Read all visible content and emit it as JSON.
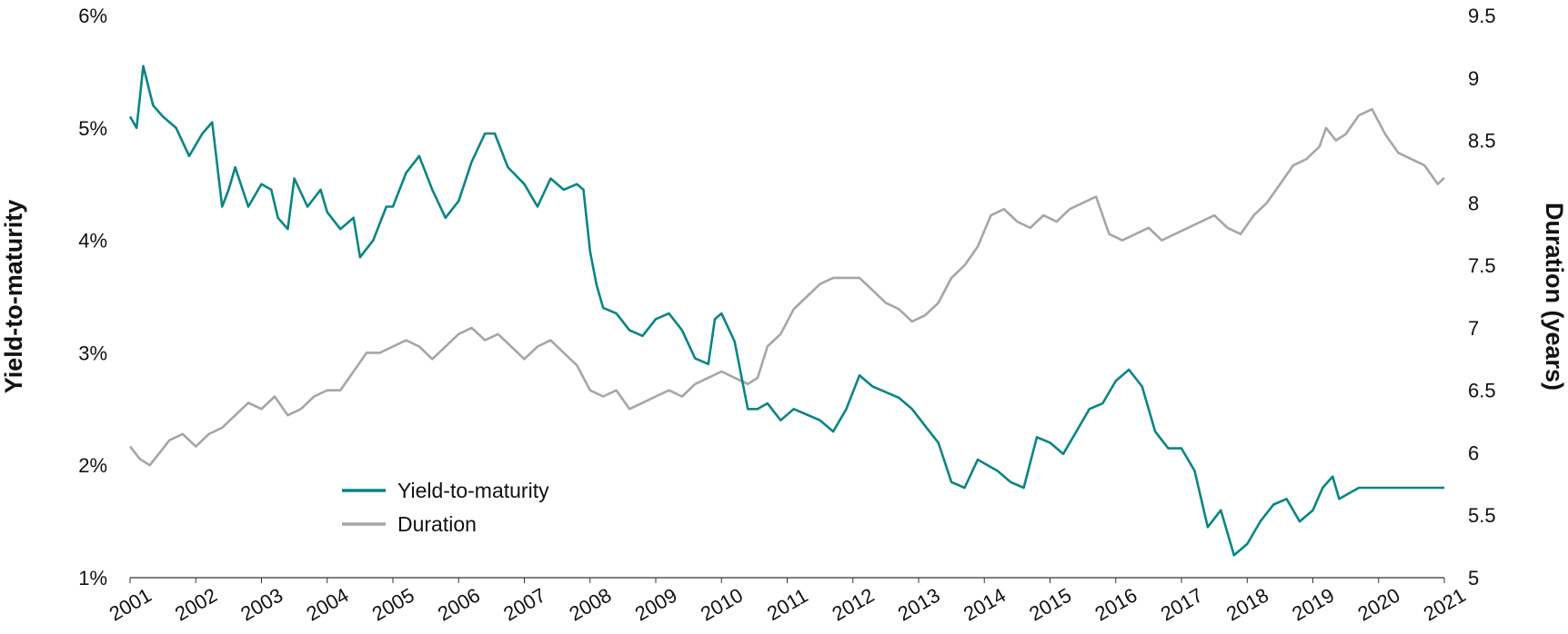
{
  "chart_data": {
    "type": "line",
    "xlabel": "",
    "ylabel_left": "Yield-to-maturity",
    "ylabel_right": "Duration (years)",
    "x_ticks": [
      "2001",
      "2002",
      "2003",
      "2004",
      "2005",
      "2006",
      "2007",
      "2008",
      "2009",
      "2010",
      "2011",
      "2012",
      "2013",
      "2014",
      "2015",
      "2016",
      "2017",
      "2018",
      "2019",
      "2020",
      "2021"
    ],
    "y_left_ticks": [
      "1%",
      "2%",
      "3%",
      "4%",
      "5%",
      "6%"
    ],
    "y_left_values": [
      1,
      2,
      3,
      4,
      5,
      6
    ],
    "y_right_ticks": [
      "5",
      "5.5",
      "6",
      "6.5",
      "7",
      "7.5",
      "8",
      "8.5",
      "9",
      "9.5"
    ],
    "y_right_values": [
      5,
      5.5,
      6,
      6.5,
      7,
      7.5,
      8,
      8.5,
      9,
      9.5
    ],
    "x_range": [
      2001.0,
      2021.0
    ],
    "y_left_range": [
      1,
      6
    ],
    "y_right_range": [
      5,
      9.5
    ],
    "legend_position": "lower-left",
    "grid": false,
    "series": [
      {
        "name": "Yield-to-maturity",
        "axis": "left",
        "color": "#0a8585",
        "x": [
          2001.0,
          2001.1,
          2001.2,
          2001.35,
          2001.5,
          2001.7,
          2001.9,
          2002.1,
          2002.25,
          2002.4,
          2002.5,
          2002.6,
          2002.8,
          2003.0,
          2003.15,
          2003.25,
          2003.4,
          2003.5,
          2003.7,
          2003.9,
          2004.0,
          2004.2,
          2004.4,
          2004.5,
          2004.7,
          2004.9,
          2005.0,
          2005.2,
          2005.4,
          2005.6,
          2005.8,
          2006.0,
          2006.2,
          2006.4,
          2006.55,
          2006.75,
          2007.0,
          2007.2,
          2007.4,
          2007.6,
          2007.8,
          2007.9,
          2008.0,
          2008.1,
          2008.2,
          2008.4,
          2008.6,
          2008.8,
          2009.0,
          2009.2,
          2009.4,
          2009.6,
          2009.8,
          2009.9,
          2010.0,
          2010.2,
          2010.4,
          2010.55,
          2010.7,
          2010.9,
          2011.1,
          2011.3,
          2011.5,
          2011.7,
          2011.9,
          2012.1,
          2012.3,
          2012.5,
          2012.7,
          2012.9,
          2013.1,
          2013.3,
          2013.5,
          2013.7,
          2013.9,
          2014.05,
          2014.2,
          2014.4,
          2014.6,
          2014.8,
          2015.0,
          2015.2,
          2015.4,
          2015.6,
          2015.8,
          2016.0,
          2016.2,
          2016.4,
          2016.6,
          2016.8,
          2017.0,
          2017.2,
          2017.4,
          2017.6,
          2017.8,
          2018.0,
          2018.2,
          2018.4,
          2018.6,
          2018.8,
          2019.0,
          2019.15,
          2019.3,
          2019.4,
          2019.55,
          2019.7,
          2019.9,
          2020.1,
          2020.3,
          2020.5,
          2020.7,
          2020.9,
          2021.0
        ],
        "values": [
          5.1,
          5.0,
          5.55,
          5.2,
          5.1,
          5.0,
          4.75,
          4.95,
          5.05,
          4.3,
          4.45,
          4.65,
          4.3,
          4.5,
          4.45,
          4.2,
          4.1,
          4.55,
          4.3,
          4.45,
          4.25,
          4.1,
          4.2,
          3.85,
          4.0,
          4.3,
          4.3,
          4.6,
          4.75,
          4.45,
          4.2,
          4.35,
          4.7,
          4.95,
          4.95,
          4.65,
          4.5,
          4.3,
          4.55,
          4.45,
          4.5,
          4.45,
          3.9,
          3.6,
          3.4,
          3.35,
          3.2,
          3.15,
          3.3,
          3.35,
          3.2,
          2.95,
          2.9,
          3.3,
          3.35,
          3.1,
          2.5,
          2.5,
          2.55,
          2.4,
          2.5,
          2.45,
          2.4,
          2.3,
          2.5,
          2.8,
          2.7,
          2.65,
          2.6,
          2.5,
          2.35,
          2.2,
          1.85,
          1.8,
          2.05,
          2.0,
          1.95,
          1.85,
          1.8,
          2.25,
          2.2,
          2.1,
          2.3,
          2.5,
          2.55,
          2.75,
          2.85,
          2.7,
          2.3,
          2.15,
          2.15,
          1.95,
          1.45,
          1.6,
          1.2,
          1.3,
          1.5,
          1.65,
          1.7,
          1.5,
          1.6,
          1.8,
          1.9,
          1.7,
          1.75,
          1.8,
          1.8,
          1.8,
          1.8,
          1.8,
          1.8,
          1.8,
          1.8
        ],
        "values_note": ""
      },
      {
        "name": "Duration",
        "axis": "right",
        "color": "#a6a6a6",
        "x": [
          2001.0,
          2001.15,
          2001.3,
          2001.45,
          2001.6,
          2001.8,
          2002.0,
          2002.2,
          2002.4,
          2002.6,
          2002.8,
          2003.0,
          2003.2,
          2003.4,
          2003.6,
          2003.8,
          2004.0,
          2004.2,
          2004.4,
          2004.6,
          2004.8,
          2005.0,
          2005.2,
          2005.4,
          2005.6,
          2005.8,
          2006.0,
          2006.2,
          2006.4,
          2006.6,
          2006.8,
          2007.0,
          2007.2,
          2007.4,
          2007.6,
          2007.8,
          2008.0,
          2008.2,
          2008.4,
          2008.6,
          2008.8,
          2009.0,
          2009.2,
          2009.4,
          2009.6,
          2009.8,
          2010.0,
          2010.2,
          2010.4,
          2010.55,
          2010.7,
          2010.9,
          2011.1,
          2011.3,
          2011.5,
          2011.7,
          2011.9,
          2012.1,
          2012.3,
          2012.5,
          2012.7,
          2012.9,
          2013.1,
          2013.3,
          2013.5,
          2013.7,
          2013.9,
          2014.1,
          2014.3,
          2014.5,
          2014.7,
          2014.9,
          2015.1,
          2015.3,
          2015.5,
          2015.7,
          2015.9,
          2016.1,
          2016.3,
          2016.5,
          2016.7,
          2016.9,
          2017.1,
          2017.3,
          2017.5,
          2017.7,
          2017.9,
          2018.1,
          2018.3,
          2018.5,
          2018.7,
          2018.9,
          2019.1,
          2019.2,
          2019.35,
          2019.5,
          2019.7,
          2019.9,
          2020.1,
          2020.3,
          2020.5,
          2020.7,
          2020.9,
          2021.0
        ],
        "values": [
          6.05,
          5.95,
          5.9,
          6.0,
          6.1,
          6.15,
          6.05,
          6.15,
          6.2,
          6.3,
          6.4,
          6.35,
          6.45,
          6.3,
          6.35,
          6.45,
          6.5,
          6.5,
          6.65,
          6.8,
          6.8,
          6.85,
          6.9,
          6.85,
          6.75,
          6.85,
          6.95,
          7.0,
          6.9,
          6.95,
          6.85,
          6.75,
          6.85,
          6.9,
          6.8,
          6.7,
          6.5,
          6.45,
          6.5,
          6.35,
          6.4,
          6.45,
          6.5,
          6.45,
          6.55,
          6.6,
          6.65,
          6.6,
          6.55,
          6.6,
          6.85,
          6.95,
          7.15,
          7.25,
          7.35,
          7.4,
          7.4,
          7.4,
          7.3,
          7.2,
          7.15,
          7.05,
          7.1,
          7.2,
          7.4,
          7.5,
          7.65,
          7.9,
          7.95,
          7.85,
          7.8,
          7.9,
          7.85,
          7.95,
          8.0,
          8.05,
          7.75,
          7.7,
          7.75,
          7.8,
          7.7,
          7.75,
          7.8,
          7.85,
          7.9,
          7.8,
          7.75,
          7.9,
          8.0,
          8.15,
          8.3,
          8.35,
          8.45,
          8.6,
          8.5,
          8.55,
          8.7,
          8.75,
          8.55,
          8.4,
          8.35,
          8.3,
          8.15,
          8.2
        ]
      }
    ]
  },
  "legend": {
    "items": [
      {
        "label": "Yield-to-maturity",
        "color": "#0a8585"
      },
      {
        "label": "Duration",
        "color": "#a6a6a6"
      }
    ]
  }
}
